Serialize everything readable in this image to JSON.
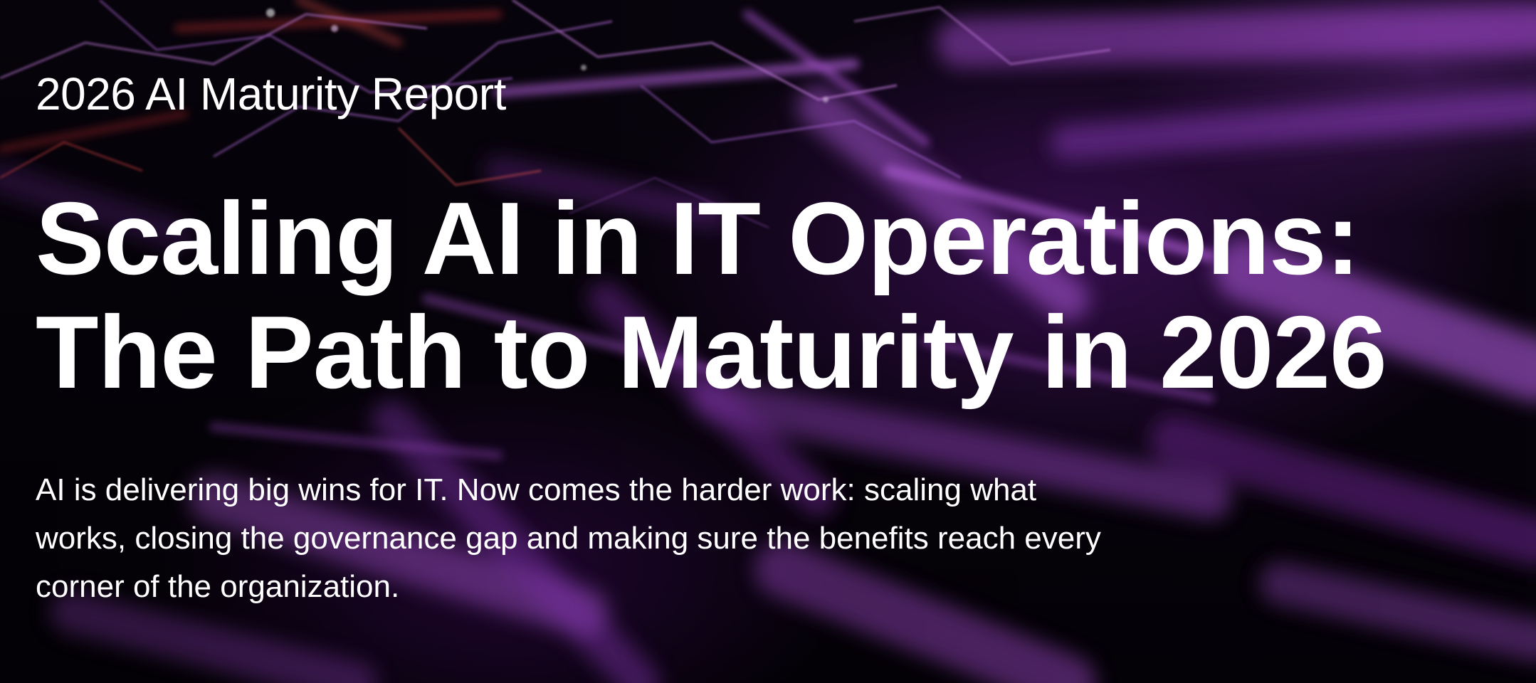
{
  "hero": {
    "eyebrow": "2026 AI Maturity Report",
    "headline_lines": [
      "Scaling AI in IT Operations:",
      "The Path to Maturity in 2026"
    ],
    "subtitle_lines": [
      "AI is delivering big wins for IT. Now comes the harder work: scaling what",
      "works, closing the governance gap and making sure the benefits reach every",
      "corner of the organization."
    ],
    "colors": {
      "text": "#ffffff",
      "accent_purple": "#a63fd6",
      "accent_red": "#d0302a",
      "background": "#07030c"
    }
  }
}
